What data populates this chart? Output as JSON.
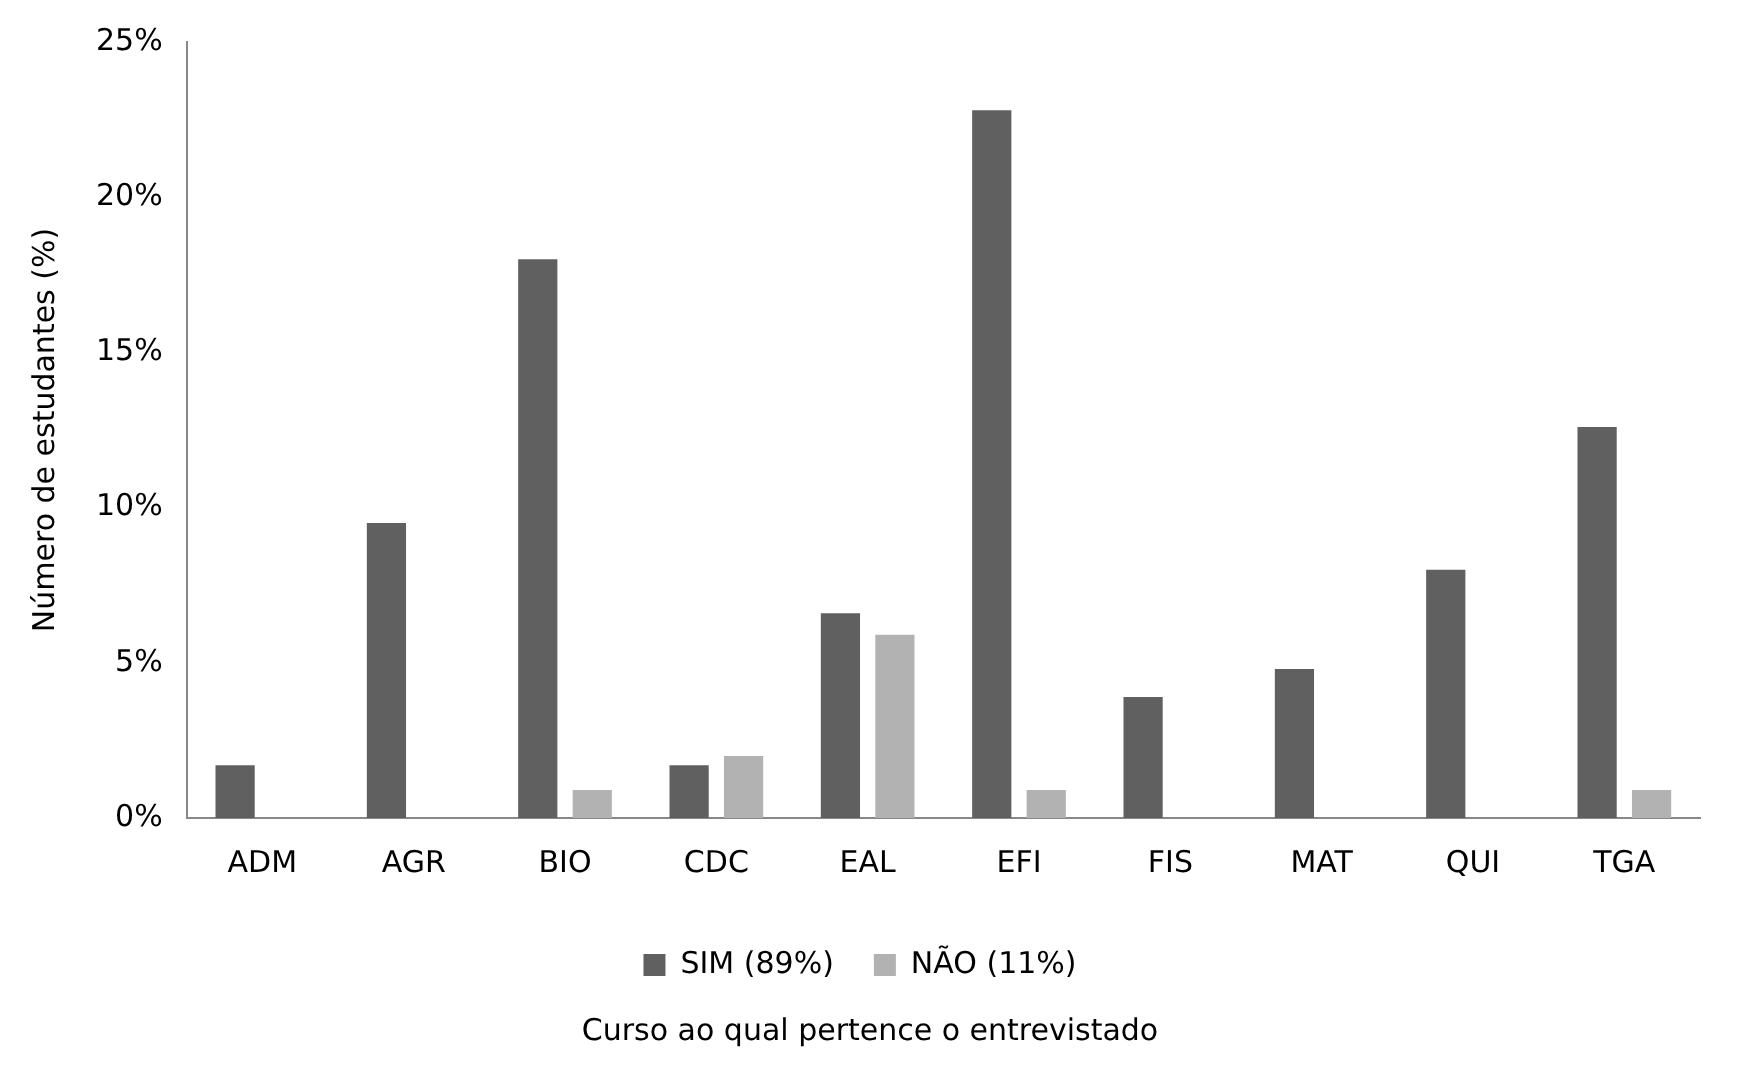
{
  "chart_data": {
    "type": "bar",
    "xlabel": "Curso ao qual pertence o entrevistado",
    "ylabel": "Número de estudantes (%)",
    "categories": [
      "ADM",
      "AGR",
      "BIO",
      "CDC",
      "EAL",
      "EFI",
      "FIS",
      "MAT",
      "QUI",
      "TGA"
    ],
    "series": [
      {
        "name": "SIM (89%)",
        "color": "#606060",
        "values": [
          1.7,
          9.5,
          18.0,
          1.7,
          6.6,
          22.8,
          3.9,
          4.8,
          8.0,
          12.6
        ]
      },
      {
        "name": "NÃO (11%)",
        "color": "#b2b2b2",
        "values": [
          0,
          0,
          0.9,
          2.0,
          5.9,
          0.9,
          0,
          0,
          0,
          0.9
        ]
      }
    ],
    "ylim": [
      0,
      25
    ],
    "yticks": [
      {
        "value": 0,
        "label": "0%"
      },
      {
        "value": 5,
        "label": "5%"
      },
      {
        "value": 10,
        "label": "10%"
      },
      {
        "value": 15,
        "label": "15%"
      },
      {
        "value": 20,
        "label": "20%"
      },
      {
        "value": 25,
        "label": "25%"
      }
    ],
    "grid": false,
    "legend": "bottom"
  }
}
